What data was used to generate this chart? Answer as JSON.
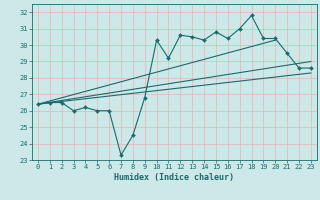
{
  "xlabel": "Humidex (Indice chaleur)",
  "bg_color": "#cce8e8",
  "grid_color": "#e8b4b4",
  "line_color": "#1a6b6b",
  "xlim": [
    -0.5,
    23.5
  ],
  "ylim": [
    23,
    32.5
  ],
  "yticks": [
    23,
    24,
    25,
    26,
    27,
    28,
    29,
    30,
    31,
    32
  ],
  "xticks": [
    0,
    1,
    2,
    3,
    4,
    5,
    6,
    7,
    8,
    9,
    10,
    11,
    12,
    13,
    14,
    15,
    16,
    17,
    18,
    19,
    20,
    21,
    22,
    23
  ],
  "main_x": [
    0,
    1,
    2,
    3,
    4,
    5,
    6,
    7,
    8,
    9,
    10,
    11,
    12,
    13,
    14,
    15,
    16,
    17,
    18,
    19,
    20,
    21,
    22,
    23
  ],
  "main_y": [
    26.4,
    26.5,
    26.5,
    26.0,
    26.2,
    26.0,
    26.0,
    23.3,
    24.5,
    26.8,
    30.3,
    29.2,
    30.6,
    30.5,
    30.3,
    30.8,
    30.4,
    31.0,
    31.8,
    30.4,
    30.4,
    29.5,
    28.6,
    28.6
  ],
  "trend1_x": [
    0,
    23
  ],
  "trend1_y": [
    26.4,
    28.3
  ],
  "trend2_x": [
    0,
    23
  ],
  "trend2_y": [
    26.4,
    29.0
  ],
  "trend3_x": [
    0,
    20
  ],
  "trend3_y": [
    26.4,
    30.3
  ]
}
